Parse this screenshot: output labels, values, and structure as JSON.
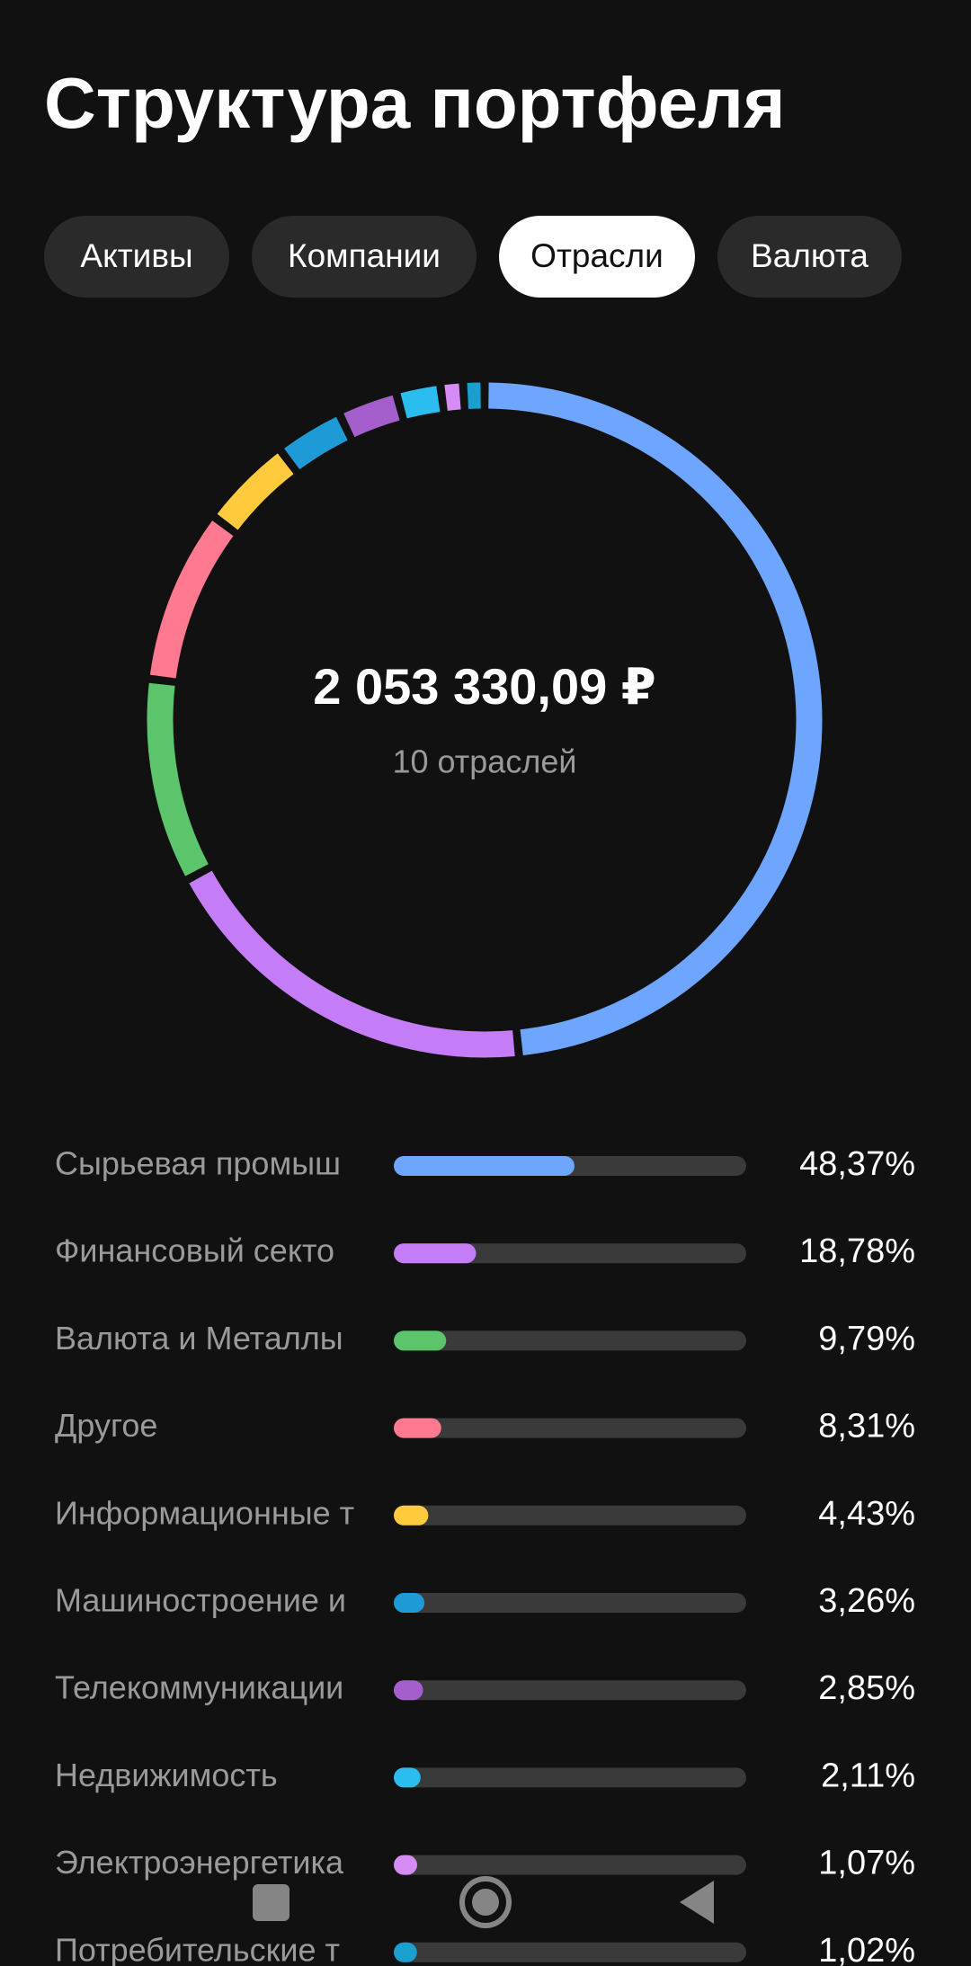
{
  "title": "Структура портфеля",
  "tabs": [
    {
      "label": "Активы"
    },
    {
      "label": "Компании"
    },
    {
      "label": "Отрасли",
      "active": true
    },
    {
      "label": "Валюта"
    }
  ],
  "chart_data": {
    "type": "donut",
    "total": "2 053 330,09 ₽",
    "subtitle": "10 отраслей",
    "categories": [
      "Сырьевая промыш",
      "Финансовый секто",
      "Валюта и Металлы",
      "Другое",
      "Информационные т",
      "Машиностроение и",
      "Телекоммуникации",
      "Недвижимость",
      "Электроэнергетика",
      "Потребительские т"
    ],
    "values": [
      48.37,
      18.78,
      9.79,
      8.31,
      4.43,
      3.26,
      2.85,
      2.11,
      1.07,
      1.02
    ],
    "value_labels": [
      "48,37%",
      "18,78%",
      "9,79%",
      "8,31%",
      "4,43%",
      "3,26%",
      "2,85%",
      "2,11%",
      "1,07%",
      "1,02%"
    ],
    "colors": [
      "#6ea6ff",
      "#c47cf7",
      "#5cc46a",
      "#ff7a90",
      "#ffcb3d",
      "#1e9bd7",
      "#a55fcd",
      "#2bbcf0",
      "#d68cf5",
      "#1a9fd0"
    ]
  }
}
